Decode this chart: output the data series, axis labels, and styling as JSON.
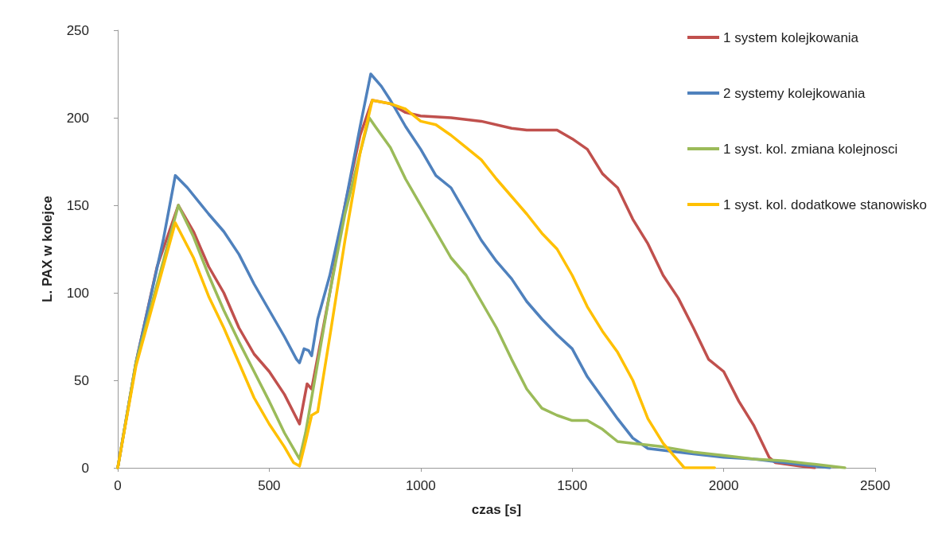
{
  "chart_data": {
    "type": "line",
    "xlabel": "czas [s]",
    "ylabel": "L. PAX w kolejce",
    "xlim": [
      0,
      2500
    ],
    "xticks": [
      0,
      500,
      1000,
      1500,
      2000,
      2500
    ],
    "ylim": [
      0,
      250
    ],
    "yticks": [
      0,
      50,
      100,
      150,
      200,
      250
    ],
    "grid": false,
    "legend": "right",
    "marker": "none",
    "line_style": "solid",
    "series": [
      {
        "name": "1 system kolejkowania",
        "color": "#c0504d",
        "x": [
          0,
          60,
          130,
          200,
          250,
          300,
          350,
          400,
          450,
          500,
          550,
          600,
          625,
          640,
          700,
          750,
          800,
          840,
          900,
          950,
          1000,
          1100,
          1200,
          1300,
          1350,
          1450,
          1500,
          1550,
          1600,
          1650,
          1700,
          1750,
          1800,
          1850,
          1900,
          1950,
          2000,
          2050,
          2100,
          2150,
          2170,
          2250,
          2300
        ],
        "values": [
          0,
          60,
          115,
          150,
          135,
          115,
          100,
          80,
          65,
          55,
          42,
          25,
          48,
          45,
          100,
          150,
          190,
          210,
          208,
          203,
          201,
          200,
          198,
          194,
          193,
          193,
          188,
          182,
          168,
          160,
          142,
          128,
          110,
          97,
          80,
          62,
          55,
          38,
          24,
          6,
          3,
          1,
          0
        ]
      },
      {
        "name": "2 systemy kolejkowania",
        "color": "#4f81bd",
        "x": [
          0,
          60,
          150,
          190,
          230,
          300,
          350,
          400,
          450,
          500,
          550,
          590,
          600,
          615,
          630,
          640,
          660,
          700,
          750,
          800,
          835,
          870,
          900,
          950,
          1000,
          1050,
          1100,
          1150,
          1200,
          1250,
          1300,
          1350,
          1400,
          1450,
          1500,
          1550,
          1600,
          1650,
          1700,
          1750,
          1800,
          1900,
          2000,
          2100,
          2200,
          2300,
          2350
        ],
        "values": [
          0,
          60,
          130,
          167,
          160,
          145,
          135,
          122,
          105,
          90,
          75,
          62,
          60,
          68,
          67,
          64,
          85,
          110,
          150,
          195,
          225,
          218,
          210,
          195,
          182,
          167,
          160,
          145,
          130,
          118,
          108,
          95,
          85,
          76,
          68,
          52,
          40,
          28,
          17,
          11,
          10,
          8,
          6,
          5,
          3,
          1,
          0
        ]
      },
      {
        "name": "1 syst. kol. zmiana kolejnosci",
        "color": "#9bbb59",
        "x": [
          0,
          60,
          200,
          250,
          300,
          350,
          400,
          450,
          500,
          550,
          590,
          600,
          620,
          660,
          700,
          750,
          800,
          830,
          850,
          900,
          950,
          1000,
          1050,
          1100,
          1150,
          1200,
          1250,
          1300,
          1350,
          1400,
          1450,
          1500,
          1550,
          1600,
          1650,
          1700,
          1800,
          1900,
          2000,
          2100,
          2200,
          2300,
          2400
        ],
        "values": [
          0,
          60,
          150,
          132,
          110,
          90,
          72,
          55,
          38,
          20,
          8,
          5,
          20,
          60,
          100,
          145,
          180,
          200,
          195,
          183,
          165,
          150,
          135,
          120,
          110,
          95,
          80,
          62,
          45,
          34,
          30,
          27,
          27,
          22,
          15,
          14,
          12,
          9,
          7,
          5,
          4,
          2,
          0
        ]
      },
      {
        "name": "1 syst. kol. dodatkowe stanowisko",
        "color": "#ffc000",
        "x": [
          0,
          60,
          190,
          250,
          300,
          350,
          400,
          450,
          500,
          550,
          580,
          600,
          620,
          640,
          660,
          700,
          750,
          800,
          840,
          900,
          950,
          1000,
          1050,
          1100,
          1150,
          1200,
          1250,
          1300,
          1350,
          1400,
          1450,
          1500,
          1550,
          1600,
          1650,
          1700,
          1750,
          1800,
          1850,
          1870,
          1970
        ],
        "values": [
          0,
          58,
          140,
          120,
          98,
          80,
          60,
          40,
          25,
          12,
          3,
          1,
          15,
          30,
          32,
          75,
          130,
          180,
          210,
          208,
          205,
          198,
          196,
          190,
          183,
          176,
          165,
          155,
          145,
          134,
          125,
          110,
          92,
          78,
          66,
          50,
          28,
          14,
          4,
          0,
          0
        ]
      }
    ]
  }
}
